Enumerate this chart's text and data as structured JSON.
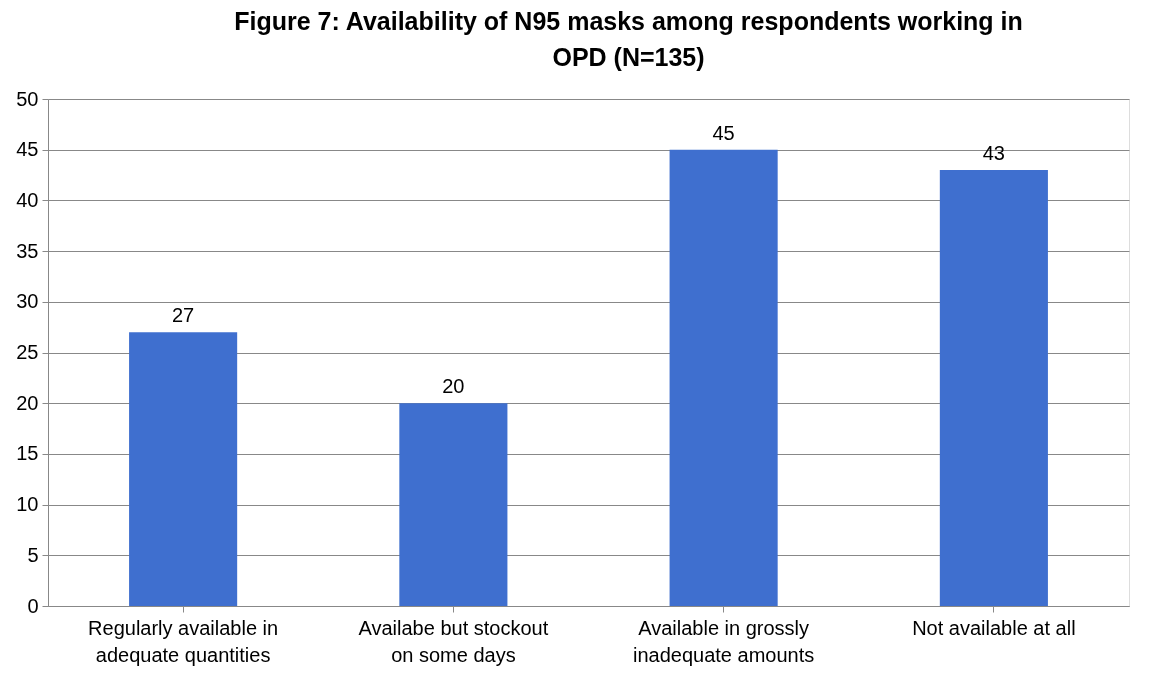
{
  "chart_data": {
    "type": "bar",
    "title": "Figure 7: Availability of N95 masks among respondents working in OPD (N=135)",
    "categories": [
      "Regularly available in adequate quantities",
      "Availabe but stockout on some days",
      "Available in grossly inadequate amounts",
      "Not available at all"
    ],
    "values": [
      27,
      20,
      45,
      43
    ],
    "color": "#3f6fcf",
    "ylim": [
      0,
      50
    ],
    "yticks": [
      0,
      5,
      10,
      15,
      20,
      25,
      30,
      35,
      40,
      45,
      50
    ],
    "grid": "y",
    "data_labels": true
  }
}
